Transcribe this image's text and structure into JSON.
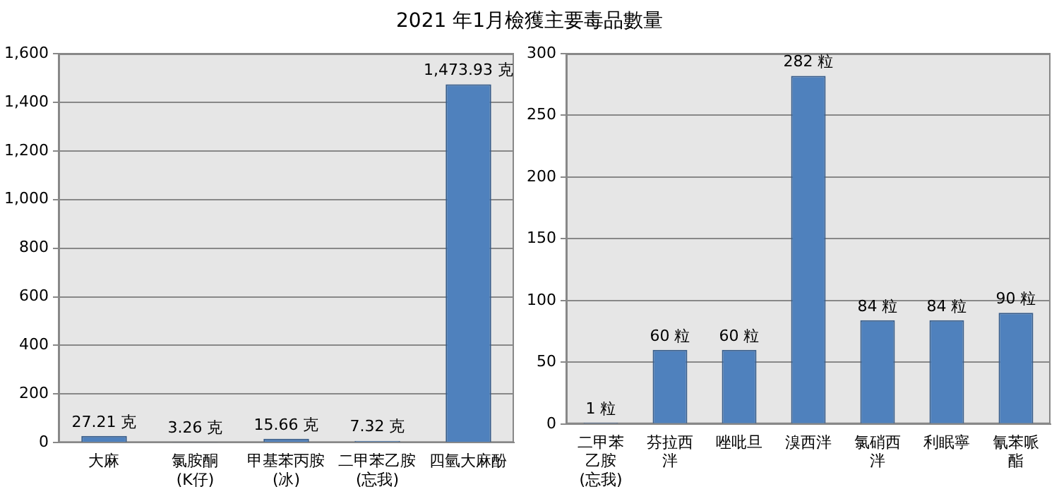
{
  "chart_data": [
    {
      "type": "bar",
      "title": "2021 年1月檢獲主要毒品數量",
      "categories": [
        "大麻",
        "氯胺酮(K仔)",
        "甲基苯丙胺(冰)",
        "二甲苯乙胺(忘我)",
        "四氫大麻酚"
      ],
      "values": [
        27.21,
        3.26,
        15.66,
        7.32,
        1473.93
      ],
      "value_labels": [
        "27.21 克",
        "3.26 克",
        "15.66 克",
        "7.32 克",
        "1,473.93 克"
      ],
      "color": "#4f81bd",
      "ylim": [
        0,
        1600
      ],
      "yticks": [
        0,
        200,
        400,
        600,
        800,
        {
          "value": 1000,
          "label": "1,000"
        },
        {
          "value": 1200,
          "label": "1,200"
        },
        {
          "value": 1400,
          "label": "1,400"
        },
        {
          "value": 1600,
          "label": "1,600"
        }
      ],
      "grid": "y"
    },
    {
      "type": "bar",
      "categories": [
        "二甲苯乙胺(忘我)",
        "芬拉西泮",
        "唑吡旦",
        "溴西泮",
        "氯硝西泮",
        "利眠寧",
        "氰苯哌酯"
      ],
      "values": [
        1,
        60,
        60,
        282,
        84,
        84,
        90
      ],
      "value_labels": [
        "1 粒",
        "60 粒",
        "60 粒",
        "282 粒",
        "84 粒",
        "84 粒",
        "90 粒"
      ],
      "color": "#4f81bd",
      "ylim": [
        0,
        300
      ],
      "yticks": [
        0,
        50,
        100,
        150,
        200,
        250,
        300
      ],
      "grid": "y"
    }
  ]
}
